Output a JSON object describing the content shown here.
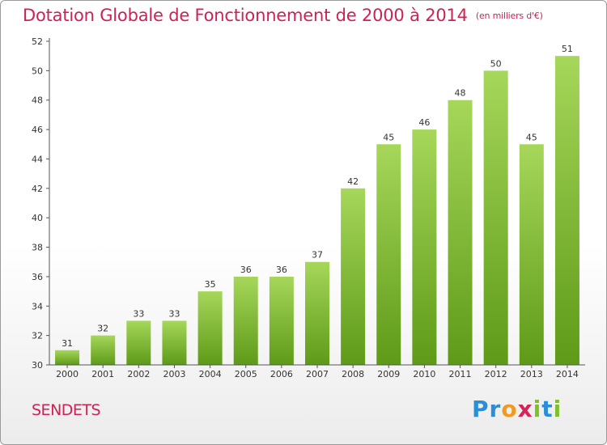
{
  "title": "Dotation Globale de Fonctionnement de 2000 à 2014",
  "unit_note": "(en milliers d'€)",
  "commune": "SENDETS",
  "brand": {
    "letters": [
      "P",
      "r",
      "o",
      "x",
      "i",
      "t",
      "i"
    ],
    "colors": [
      "#2a8fd6",
      "#2a8fd6",
      "#f29a1f",
      "#d6235a",
      "#7fbf2a",
      "#2a8fd6",
      "#7fbf2a"
    ]
  },
  "colors": {
    "bar_top": "#a6d75a",
    "bar_bottom": "#5e9a18",
    "title": "#cc2255"
  },
  "chart_data": {
    "type": "bar",
    "title": "Dotation Globale de Fonctionnement de 2000 à 2014",
    "xlabel": "",
    "ylabel": "en milliers d'€",
    "categories": [
      "2000",
      "2001",
      "2002",
      "2003",
      "2004",
      "2005",
      "2006",
      "2007",
      "2008",
      "2009",
      "2010",
      "2011",
      "2012",
      "2013",
      "2014"
    ],
    "values": [
      31,
      32,
      33,
      33,
      35,
      36,
      36,
      37,
      42,
      45,
      46,
      48,
      50,
      45,
      51
    ],
    "ylim": [
      30,
      52
    ],
    "yticks": [
      30,
      32,
      34,
      36,
      38,
      40,
      42,
      44,
      46,
      48,
      50,
      52
    ],
    "grid": false,
    "legend": "none"
  }
}
